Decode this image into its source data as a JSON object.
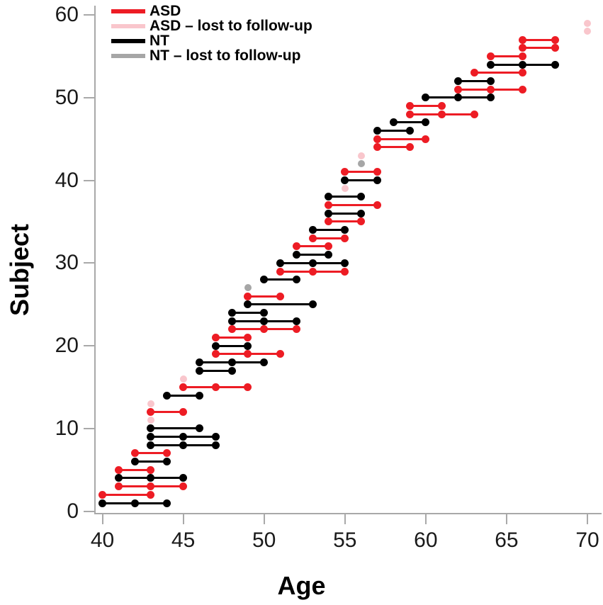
{
  "figure_title": "",
  "chart_data": {
    "type": "dumbbell",
    "title": "",
    "xlabel": "Age",
    "ylabel": "Subject",
    "x_ticks": [
      40,
      45,
      50,
      55,
      60,
      65,
      70
    ],
    "y_ticks": [
      0,
      10,
      20,
      30,
      40,
      50,
      60
    ],
    "xlim": [
      39.5,
      71
    ],
    "ylim": [
      0,
      61
    ],
    "grid": false,
    "legend_position": "top-left-inside",
    "legend": [
      {
        "key": "ASD",
        "label": "ASD",
        "color": "#ed1c24"
      },
      {
        "key": "ASD_lost",
        "label": "ASD – lost to follow-up",
        "color": "#f9c6cc"
      },
      {
        "key": "NT",
        "label": "NT",
        "color": "#000000"
      },
      {
        "key": "NT_lost",
        "label": "NT – lost to follow-up",
        "color": "#a6a6a6"
      }
    ],
    "subjects": [
      {
        "subject": 1,
        "group": "NT",
        "ages": [
          40,
          42,
          44
        ]
      },
      {
        "subject": 2,
        "group": "ASD",
        "ages": [
          40,
          43
        ]
      },
      {
        "subject": 3,
        "group": "ASD",
        "ages": [
          41,
          43,
          45
        ]
      },
      {
        "subject": 4,
        "group": "NT",
        "ages": [
          41,
          43,
          45
        ]
      },
      {
        "subject": 5,
        "group": "ASD",
        "ages": [
          41,
          43
        ]
      },
      {
        "subject": 6,
        "group": "NT",
        "ages": [
          42,
          44
        ]
      },
      {
        "subject": 7,
        "group": "ASD",
        "ages": [
          42,
          44
        ]
      },
      {
        "subject": 8,
        "group": "NT",
        "ages": [
          43,
          45,
          47
        ]
      },
      {
        "subject": 9,
        "group": "NT",
        "ages": [
          43,
          45,
          47
        ]
      },
      {
        "subject": 10,
        "group": "NT",
        "ages": [
          43,
          46
        ]
      },
      {
        "subject": 11,
        "group": "ASD_lost",
        "ages": [
          43
        ]
      },
      {
        "subject": 12,
        "group": "ASD",
        "ages": [
          43,
          45
        ]
      },
      {
        "subject": 13,
        "group": "ASD_lost",
        "ages": [
          43
        ]
      },
      {
        "subject": 14,
        "group": "NT",
        "ages": [
          44,
          46
        ]
      },
      {
        "subject": 15,
        "group": "ASD",
        "ages": [
          45,
          47,
          49
        ]
      },
      {
        "subject": 16,
        "group": "ASD_lost",
        "ages": [
          45
        ]
      },
      {
        "subject": 17,
        "group": "NT",
        "ages": [
          46,
          48
        ]
      },
      {
        "subject": 18,
        "group": "NT",
        "ages": [
          46,
          48,
          50
        ]
      },
      {
        "subject": 19,
        "group": "ASD",
        "ages": [
          47,
          49,
          51
        ]
      },
      {
        "subject": 20,
        "group": "NT",
        "ages": [
          47,
          49
        ]
      },
      {
        "subject": 21,
        "group": "ASD",
        "ages": [
          47,
          49
        ]
      },
      {
        "subject": 22,
        "group": "ASD",
        "ages": [
          48,
          50,
          52
        ]
      },
      {
        "subject": 23,
        "group": "NT",
        "ages": [
          48,
          50,
          52
        ]
      },
      {
        "subject": 24,
        "group": "NT",
        "ages": [
          48,
          50
        ]
      },
      {
        "subject": 25,
        "group": "NT",
        "ages": [
          49,
          53
        ]
      },
      {
        "subject": 26,
        "group": "ASD",
        "ages": [
          49,
          51
        ]
      },
      {
        "subject": 27,
        "group": "NT_lost",
        "ages": [
          49
        ]
      },
      {
        "subject": 28,
        "group": "NT",
        "ages": [
          50,
          52
        ]
      },
      {
        "subject": 29,
        "group": "ASD",
        "ages": [
          51,
          53,
          55
        ]
      },
      {
        "subject": 30,
        "group": "NT",
        "ages": [
          51,
          53,
          55
        ]
      },
      {
        "subject": 31,
        "group": "NT",
        "ages": [
          52,
          54
        ]
      },
      {
        "subject": 32,
        "group": "ASD",
        "ages": [
          52,
          54
        ]
      },
      {
        "subject": 33,
        "group": "ASD",
        "ages": [
          53,
          55
        ]
      },
      {
        "subject": 34,
        "group": "NT",
        "ages": [
          53,
          55
        ]
      },
      {
        "subject": 35,
        "group": "ASD",
        "ages": [
          54,
          56
        ]
      },
      {
        "subject": 36,
        "group": "NT",
        "ages": [
          54,
          56
        ]
      },
      {
        "subject": 37,
        "group": "ASD",
        "ages": [
          54,
          57
        ]
      },
      {
        "subject": 38,
        "group": "NT",
        "ages": [
          54,
          56
        ]
      },
      {
        "subject": 39,
        "group": "ASD_lost",
        "ages": [
          55
        ]
      },
      {
        "subject": 40,
        "group": "NT",
        "ages": [
          55,
          57
        ]
      },
      {
        "subject": 41,
        "group": "ASD",
        "ages": [
          55,
          57
        ]
      },
      {
        "subject": 42,
        "group": "NT_lost",
        "ages": [
          56
        ]
      },
      {
        "subject": 43,
        "group": "ASD_lost",
        "ages": [
          56
        ]
      },
      {
        "subject": 44,
        "group": "ASD",
        "ages": [
          57,
          59
        ]
      },
      {
        "subject": 45,
        "group": "ASD",
        "ages": [
          57,
          60
        ]
      },
      {
        "subject": 46,
        "group": "NT",
        "ages": [
          57,
          59
        ]
      },
      {
        "subject": 47,
        "group": "NT",
        "ages": [
          58,
          60
        ]
      },
      {
        "subject": 48,
        "group": "ASD",
        "ages": [
          59,
          61,
          63
        ]
      },
      {
        "subject": 49,
        "group": "ASD",
        "ages": [
          59,
          61
        ]
      },
      {
        "subject": 50,
        "group": "NT",
        "ages": [
          60,
          62,
          64
        ]
      },
      {
        "subject": 51,
        "group": "ASD",
        "ages": [
          62,
          64,
          66
        ]
      },
      {
        "subject": 52,
        "group": "NT",
        "ages": [
          62,
          64
        ]
      },
      {
        "subject": 53,
        "group": "ASD",
        "ages": [
          63,
          66
        ]
      },
      {
        "subject": 54,
        "group": "NT",
        "ages": [
          64,
          66,
          68
        ]
      },
      {
        "subject": 55,
        "group": "ASD",
        "ages": [
          64,
          66
        ]
      },
      {
        "subject": 56,
        "group": "ASD",
        "ages": [
          66,
          68
        ]
      },
      {
        "subject": 57,
        "group": "ASD",
        "ages": [
          66,
          68
        ]
      },
      {
        "subject": 58,
        "group": "ASD_lost",
        "ages": [
          70
        ]
      },
      {
        "subject": 59,
        "group": "ASD_lost",
        "ages": [
          70
        ]
      }
    ]
  }
}
